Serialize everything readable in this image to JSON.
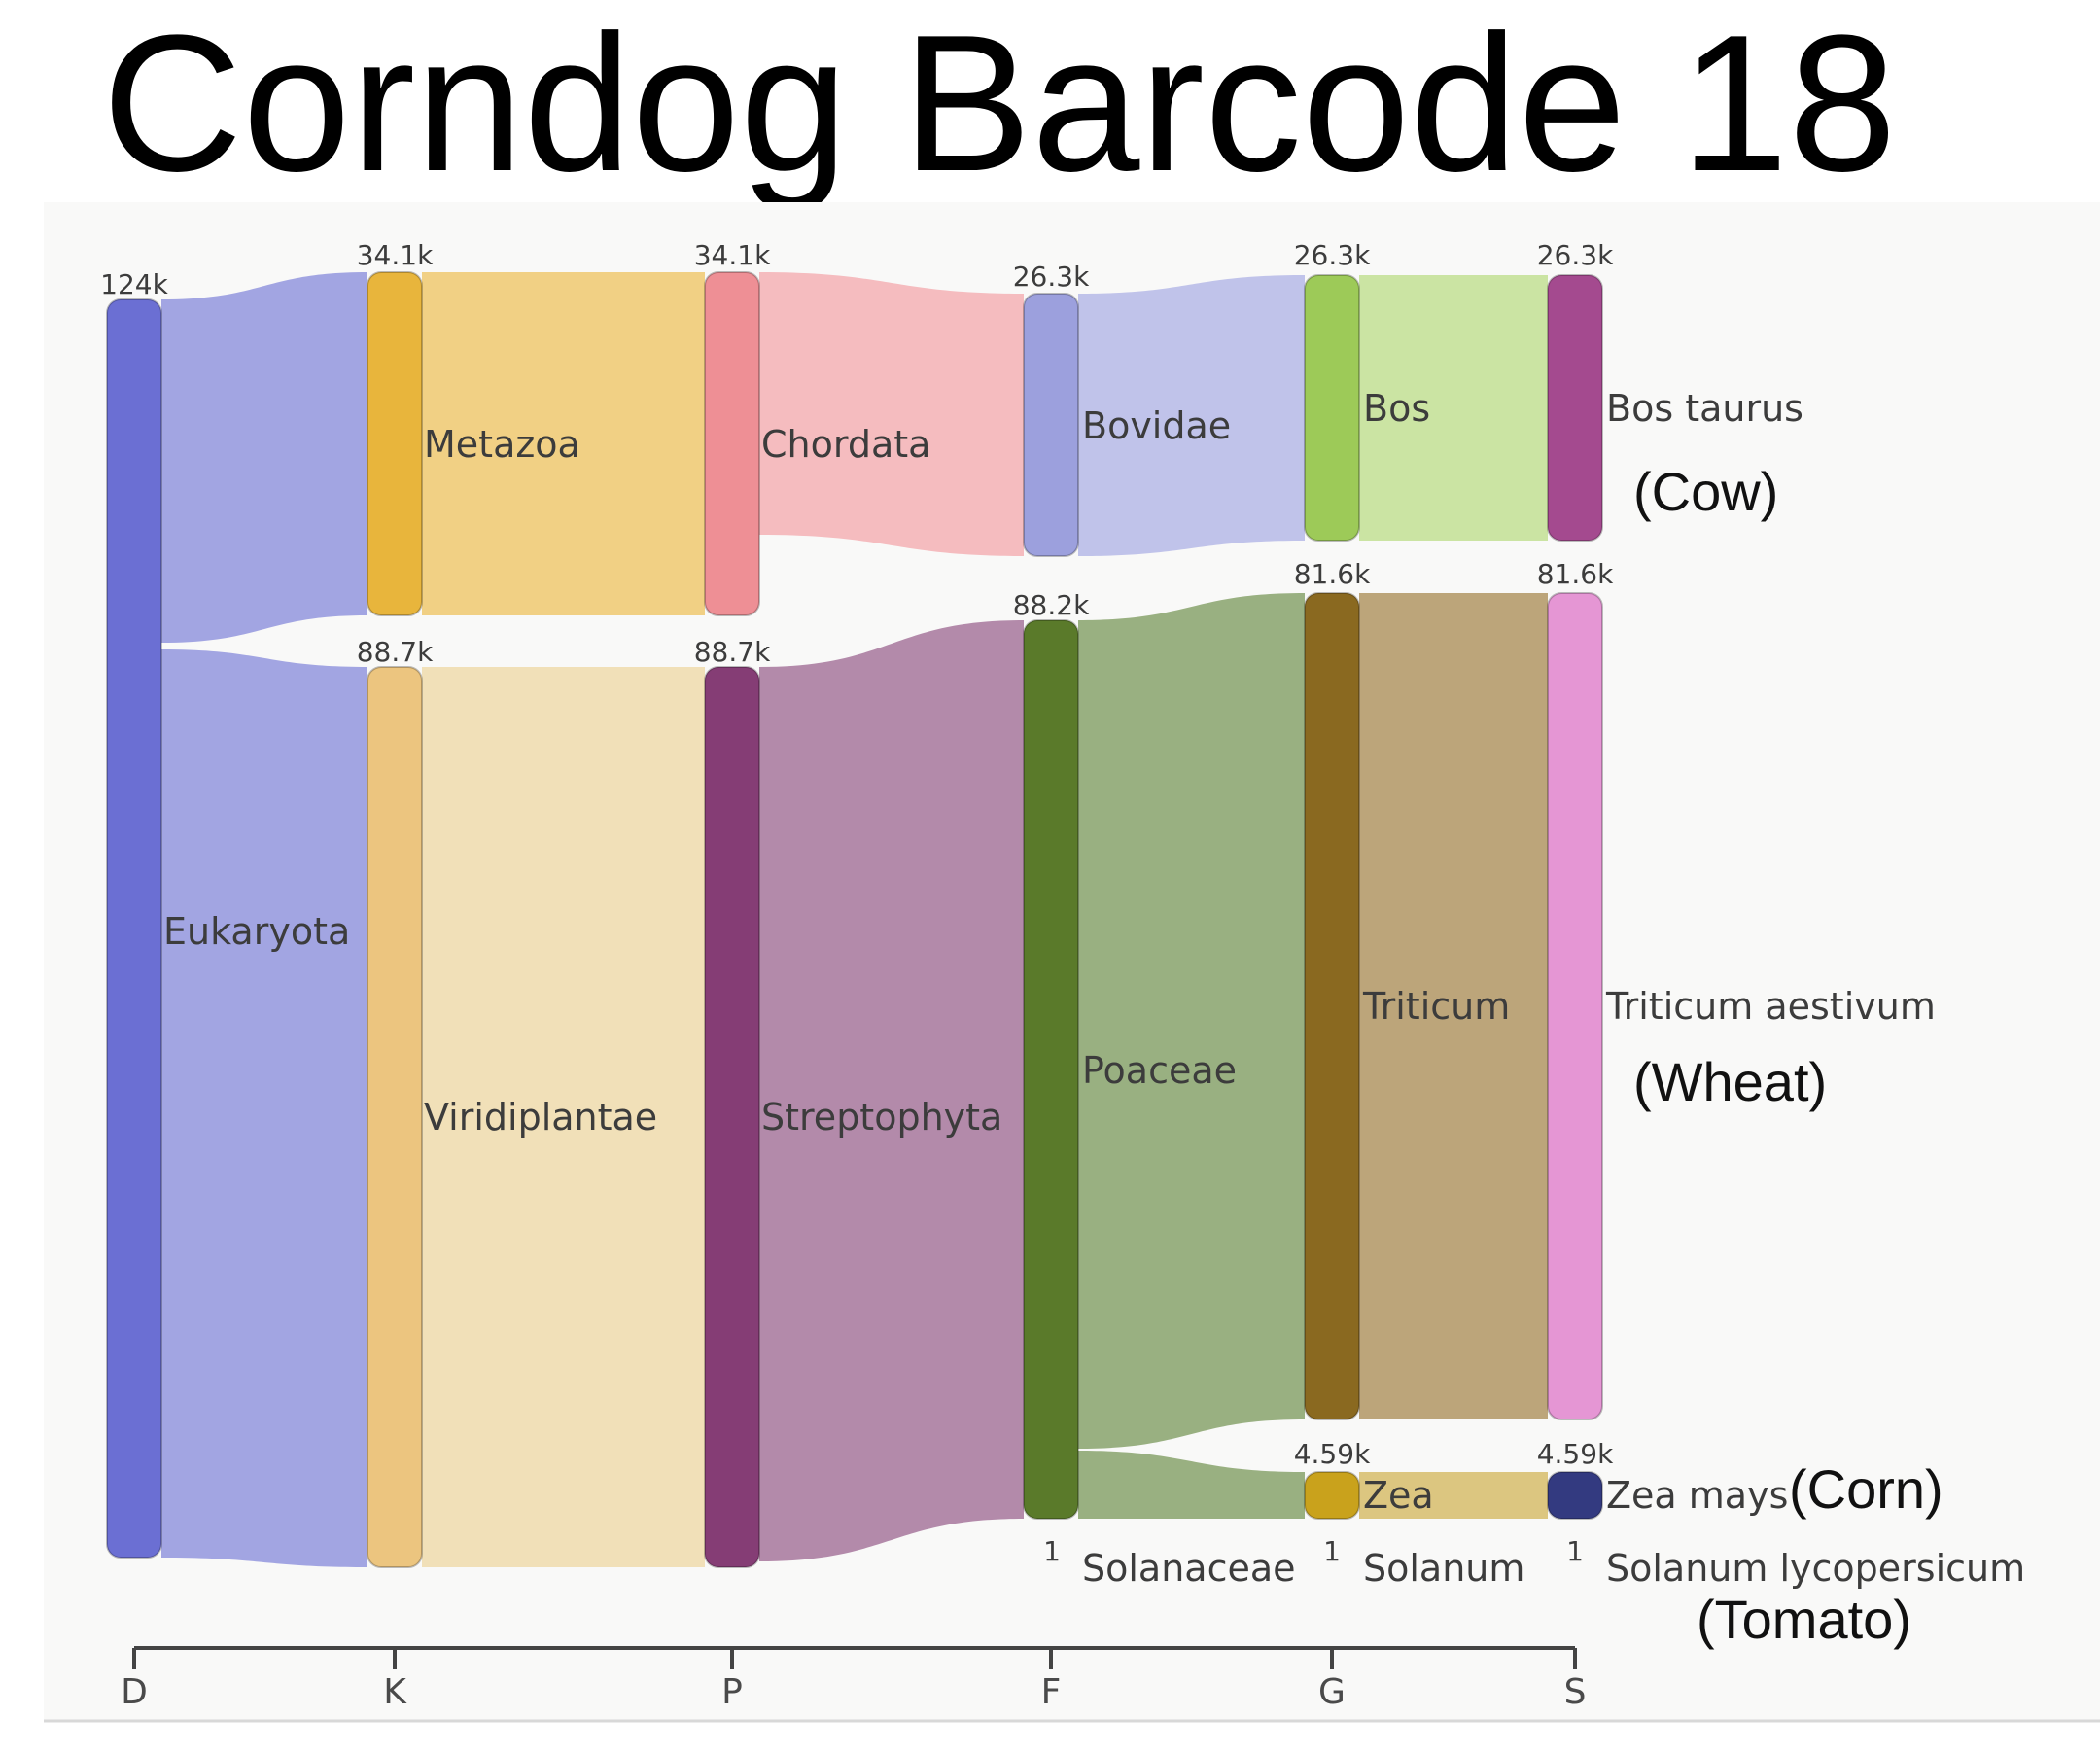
{
  "title": "Corndog Barcode 18",
  "colors": {
    "background": "#f9f9f8",
    "axis": "#444444",
    "D_Eukaryota": "#6b6fd3",
    "K_Metazoa": "#e8b53c",
    "K_Viridiplantae": "#ecc57f",
    "P_Chordata": "#ee8f95",
    "P_Streptophyta": "#853d75",
    "F_Bovidae": "#9ca0dd",
    "F_Poaceae": "#5a7a2a",
    "G_Bos": "#9dca58",
    "G_Triticum": "#8a6920",
    "G_Zea": "#c9a21c",
    "S_Bos_taurus": "#a44a8f",
    "S_Triticum_aestivum": "#e596d4",
    "S_Zea_mays": "#333a80"
  },
  "chart_data": {
    "type": "sankey",
    "ranks": [
      "D",
      "K",
      "P",
      "F",
      "G",
      "S"
    ],
    "nodes": [
      {
        "id": "Eukaryota",
        "rank": "D",
        "count": "124k",
        "label": "Eukaryota",
        "count_label": "124k"
      },
      {
        "id": "Metazoa",
        "rank": "K",
        "count": "34.1k",
        "label": "Metazoa",
        "count_label": "34.1k"
      },
      {
        "id": "Viridiplantae",
        "rank": "K",
        "count": "88.7k",
        "label": "Viridiplantae",
        "count_label": "88.7k"
      },
      {
        "id": "Chordata",
        "rank": "P",
        "count": "34.1k",
        "label": "Chordata",
        "count_label": "34.1k"
      },
      {
        "id": "Streptophyta",
        "rank": "P",
        "count": "88.7k",
        "label": "Streptophyta",
        "count_label": "88.7k"
      },
      {
        "id": "Bovidae",
        "rank": "F",
        "count": "26.3k",
        "label": "Bovidae",
        "count_label": "26.3k"
      },
      {
        "id": "Poaceae",
        "rank": "F",
        "count": "88.2k",
        "label": "Poaceae",
        "count_label": "88.2k"
      },
      {
        "id": "Solanaceae",
        "rank": "F",
        "count": "1",
        "label": "Solanaceae",
        "count_label": "1"
      },
      {
        "id": "Bos",
        "rank": "G",
        "count": "26.3k",
        "label": "Bos",
        "count_label": "26.3k"
      },
      {
        "id": "Triticum",
        "rank": "G",
        "count": "81.6k",
        "label": "Triticum",
        "count_label": "81.6k"
      },
      {
        "id": "Zea",
        "rank": "G",
        "count": "4.59k",
        "label": "Zea",
        "count_label": "4.59k"
      },
      {
        "id": "Solanum",
        "rank": "G",
        "count": "1",
        "label": "Solanum",
        "count_label": "1"
      },
      {
        "id": "Bos taurus",
        "rank": "S",
        "count": "26.3k",
        "label": "Bos taurus",
        "count_label": "26.3k",
        "common_name": "(Cow)"
      },
      {
        "id": "Triticum aestivum",
        "rank": "S",
        "count": "81.6k",
        "label": "Triticum aestivum",
        "count_label": "81.6k",
        "common_name": "(Wheat)"
      },
      {
        "id": "Zea mays",
        "rank": "S",
        "count": "4.59k",
        "label": "Zea mays",
        "count_label": "4.59k",
        "common_name": "(Corn)"
      },
      {
        "id": "Solanum lycopersicum",
        "rank": "S",
        "count": "1",
        "label": "Solanum lycopersicum",
        "count_label": "1",
        "common_name": "(Tomato)"
      }
    ],
    "links": [
      {
        "source": "Eukaryota",
        "target": "Metazoa",
        "value": "34.1k"
      },
      {
        "source": "Eukaryota",
        "target": "Viridiplantae",
        "value": "88.7k"
      },
      {
        "source": "Metazoa",
        "target": "Chordata",
        "value": "34.1k"
      },
      {
        "source": "Viridiplantae",
        "target": "Streptophyta",
        "value": "88.7k"
      },
      {
        "source": "Chordata",
        "target": "Bovidae",
        "value": "26.3k"
      },
      {
        "source": "Streptophyta",
        "target": "Poaceae",
        "value": "88.2k"
      },
      {
        "source": "Bovidae",
        "target": "Bos",
        "value": "26.3k"
      },
      {
        "source": "Poaceae",
        "target": "Triticum",
        "value": "81.6k"
      },
      {
        "source": "Poaceae",
        "target": "Zea",
        "value": "4.59k"
      },
      {
        "source": "Bos",
        "target": "Bos taurus",
        "value": "26.3k"
      },
      {
        "source": "Triticum",
        "target": "Triticum aestivum",
        "value": "81.6k"
      },
      {
        "source": "Zea",
        "target": "Zea mays",
        "value": "4.59k"
      }
    ]
  }
}
